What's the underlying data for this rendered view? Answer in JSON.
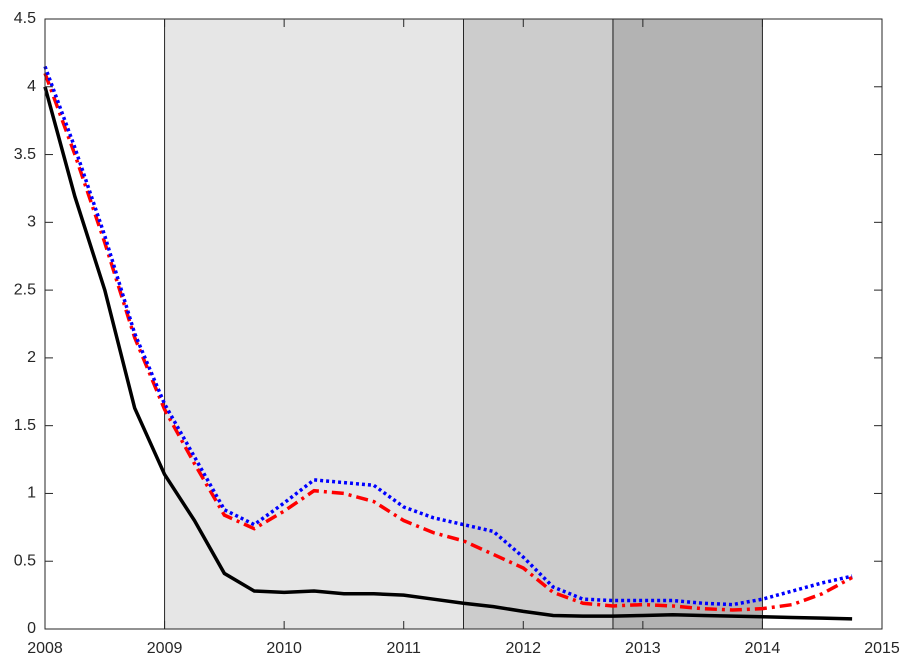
{
  "chart_data": {
    "type": "line",
    "x": [
      2008,
      2008.25,
      2008.5,
      2008.75,
      2009,
      2009.25,
      2009.5,
      2009.75,
      2010,
      2010.25,
      2010.5,
      2010.75,
      2011,
      2011.25,
      2011.5,
      2011.75,
      2012,
      2012.25,
      2012.5,
      2012.75,
      2013,
      2013.25,
      2013.5,
      2013.75,
      2014,
      2014.25,
      2014.5,
      2014.75
    ],
    "series": [
      {
        "color": "#000000",
        "line_style": "solid",
        "values": [
          4.0,
          3.19,
          2.5,
          1.63,
          1.14,
          0.8,
          0.41,
          0.28,
          0.27,
          0.28,
          0.26,
          0.26,
          0.25,
          0.22,
          0.19,
          0.165,
          0.13,
          0.1,
          0.095,
          0.095,
          0.1,
          0.105,
          0.1,
          0.095,
          0.09,
          0.085,
          0.08,
          0.075
        ]
      },
      {
        "color": "#ff0000",
        "line_style": "dashdot",
        "values": [
          4.1,
          3.5,
          2.85,
          2.15,
          1.62,
          1.22,
          0.84,
          0.74,
          0.87,
          1.02,
          1.0,
          0.94,
          0.8,
          0.71,
          0.65,
          0.55,
          0.45,
          0.27,
          0.19,
          0.17,
          0.18,
          0.17,
          0.15,
          0.14,
          0.15,
          0.18,
          0.26,
          0.38
        ]
      },
      {
        "color": "#0000ff",
        "line_style": "dotted",
        "values": [
          4.15,
          3.55,
          2.9,
          2.18,
          1.66,
          1.27,
          0.88,
          0.77,
          0.93,
          1.1,
          1.08,
          1.06,
          0.9,
          0.82,
          0.77,
          0.72,
          0.53,
          0.31,
          0.22,
          0.21,
          0.21,
          0.21,
          0.19,
          0.18,
          0.22,
          0.28,
          0.34,
          0.39
        ]
      }
    ],
    "shaded_regions": [
      {
        "xmin": 2009,
        "xmax": 2011.5,
        "color": "#e6e6e6"
      },
      {
        "xmin": 2011.5,
        "xmax": 2012.75,
        "color": "#cccccc"
      },
      {
        "xmin": 2012.75,
        "xmax": 2014,
        "color": "#b3b3b3"
      }
    ],
    "xlim": [
      2008,
      2015
    ],
    "xticks": [
      2008,
      2009,
      2010,
      2011,
      2012,
      2013,
      2014,
      2015
    ],
    "ylim": [
      0,
      4.5
    ],
    "yticks": [
      0,
      0.5,
      1,
      1.5,
      2,
      2.5,
      3,
      3.5,
      4,
      4.5
    ]
  }
}
